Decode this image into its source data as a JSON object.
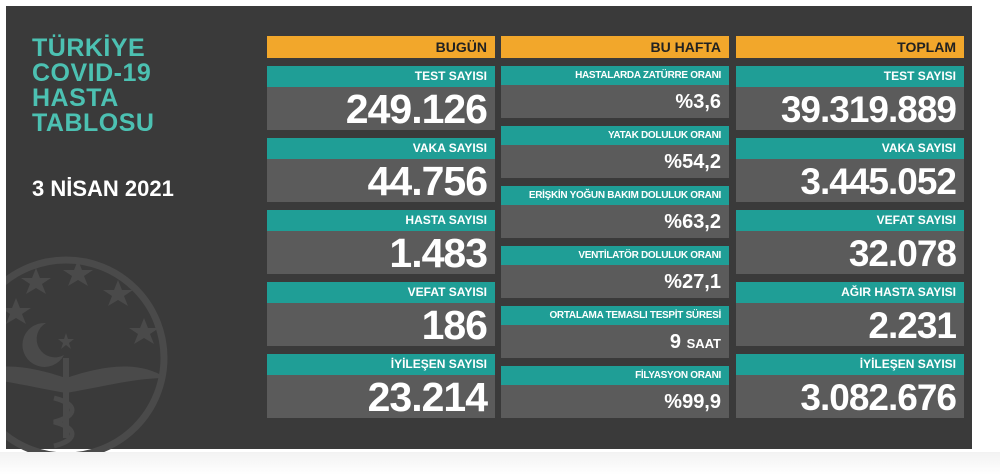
{
  "title_lines": [
    "TÜRKİYE",
    "COVID-19",
    "HASTA",
    "TABLOSU"
  ],
  "date": "3 NİSAN 2021",
  "colors": {
    "accent_orange": "#f2a72b",
    "teal": "#1f9e96",
    "title_teal": "#4cc1b2",
    "background": "#3a3a3a",
    "value_bg": "#5b5b5b"
  },
  "today": {
    "header": "BUGÜN",
    "items": [
      {
        "label": "TEST SAYISI",
        "value": "249.126"
      },
      {
        "label": "VAKA SAYISI",
        "value": "44.756"
      },
      {
        "label": "HASTA SAYISI",
        "value": "1.483"
      },
      {
        "label": "VEFAT SAYISI",
        "value": "186"
      },
      {
        "label": "İYİLEŞEN SAYISI",
        "value": "23.214"
      }
    ]
  },
  "week": {
    "header": "BU HAFTA",
    "items": [
      {
        "label": "HASTALARDA ZATÜRRE ORANI",
        "value": "%3,6"
      },
      {
        "label": "YATAK DOLULUK ORANI",
        "value": "%54,2"
      },
      {
        "label": "ERİŞKİN YOĞUN BAKIM DOLULUK ORANI",
        "value": "%63,2"
      },
      {
        "label": "VENTİLATÖR DOLULUK ORANI",
        "value": "%27,1"
      },
      {
        "label": "ORTALAMA TEMASLI TESPİT SÜRESİ",
        "value": "9",
        "unit": "SAAT"
      },
      {
        "label": "FİLYASYON ORANI",
        "value": "%99,9"
      }
    ]
  },
  "total": {
    "header": "TOPLAM",
    "items": [
      {
        "label": "TEST SAYISI",
        "value": "39.319.889"
      },
      {
        "label": "VAKA SAYISI",
        "value": "3.445.052"
      },
      {
        "label": "VEFAT SAYISI",
        "value": "32.078"
      },
      {
        "label": "AĞIR HASTA SAYISI",
        "value": "2.231"
      },
      {
        "label": "İYİLEŞEN SAYISI",
        "value": "3.082.676"
      }
    ]
  },
  "emblem": {
    "icon": "ministry-of-health-emblem-icon"
  }
}
